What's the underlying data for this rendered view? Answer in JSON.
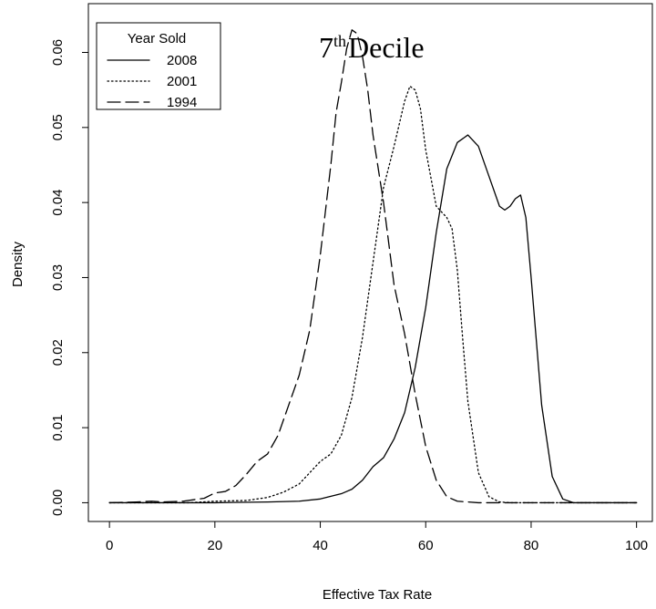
{
  "chart_data": {
    "type": "line",
    "title": "7th Decile",
    "title_main": "7",
    "title_sup": "th",
    "title_rest": "Decile",
    "xlabel": "Effective Tax Rate",
    "ylabel": "Density",
    "xlim": [
      -4,
      103
    ],
    "ylim": [
      -0.0025,
      0.0665
    ],
    "xticks": [
      0,
      20,
      40,
      60,
      80,
      100
    ],
    "yticks": [
      0.0,
      0.01,
      0.02,
      0.03,
      0.04,
      0.05,
      0.06
    ],
    "xtick_labels": [
      "0",
      "20",
      "40",
      "60",
      "80",
      "100"
    ],
    "ytick_labels": [
      "0.00",
      "0.01",
      "0.02",
      "0.03",
      "0.04",
      "0.05",
      "0.06"
    ],
    "grid": false,
    "legend": {
      "title": "Year Sold",
      "position": "top-left"
    },
    "series": [
      {
        "name": "2008",
        "style": "solid",
        "color": "#000000",
        "x": [
          0,
          20,
          30,
          36,
          40,
          44,
          46,
          48,
          50,
          52,
          54,
          56,
          58,
          60,
          62,
          64,
          66,
          68,
          70,
          72,
          74,
          75,
          76,
          77,
          78,
          79,
          80,
          82,
          84,
          86,
          88,
          100
        ],
        "y": [
          0,
          0,
          0.0001,
          0.0002,
          0.0005,
          0.0012,
          0.0018,
          0.003,
          0.0048,
          0.006,
          0.0085,
          0.012,
          0.018,
          0.026,
          0.036,
          0.0445,
          0.048,
          0.049,
          0.0475,
          0.0435,
          0.0395,
          0.039,
          0.0395,
          0.0405,
          0.041,
          0.038,
          0.03,
          0.013,
          0.0035,
          0.0005,
          0,
          0
        ]
      },
      {
        "name": "2001",
        "style": "dotted",
        "color": "#000000",
        "x": [
          0,
          15,
          20,
          26,
          30,
          33,
          36,
          38,
          40,
          42,
          44,
          46,
          48,
          50,
          52,
          54,
          55,
          56,
          57,
          58,
          59,
          60,
          62,
          64,
          65,
          66,
          67,
          68,
          70,
          72,
          74,
          76,
          80,
          100
        ],
        "y": [
          0,
          0,
          0.0002,
          0.0003,
          0.0007,
          0.0014,
          0.0025,
          0.004,
          0.0055,
          0.0065,
          0.009,
          0.014,
          0.022,
          0.032,
          0.042,
          0.0475,
          0.0505,
          0.0535,
          0.0555,
          0.055,
          0.0525,
          0.047,
          0.0395,
          0.038,
          0.0365,
          0.031,
          0.022,
          0.0135,
          0.004,
          0.0008,
          0.0001,
          0,
          0,
          0
        ]
      },
      {
        "name": "1994",
        "style": "dashed",
        "color": "#000000",
        "x": [
          0,
          5,
          8,
          10,
          14,
          18,
          20,
          22,
          24,
          26,
          28,
          30,
          32,
          34,
          36,
          38,
          40,
          42,
          43,
          44,
          45,
          46,
          47,
          48,
          49,
          50,
          52,
          54,
          56,
          58,
          60,
          62,
          64,
          66,
          70,
          100
        ],
        "y": [
          0,
          0.0001,
          0.0002,
          0.0001,
          0.0002,
          0.0006,
          0.0013,
          0.0015,
          0.0023,
          0.0038,
          0.0055,
          0.0065,
          0.009,
          0.013,
          0.017,
          0.023,
          0.033,
          0.045,
          0.052,
          0.056,
          0.0605,
          0.063,
          0.0625,
          0.0595,
          0.055,
          0.049,
          0.04,
          0.029,
          0.0225,
          0.0145,
          0.0075,
          0.003,
          0.0008,
          0.0002,
          0,
          0
        ]
      }
    ]
  }
}
